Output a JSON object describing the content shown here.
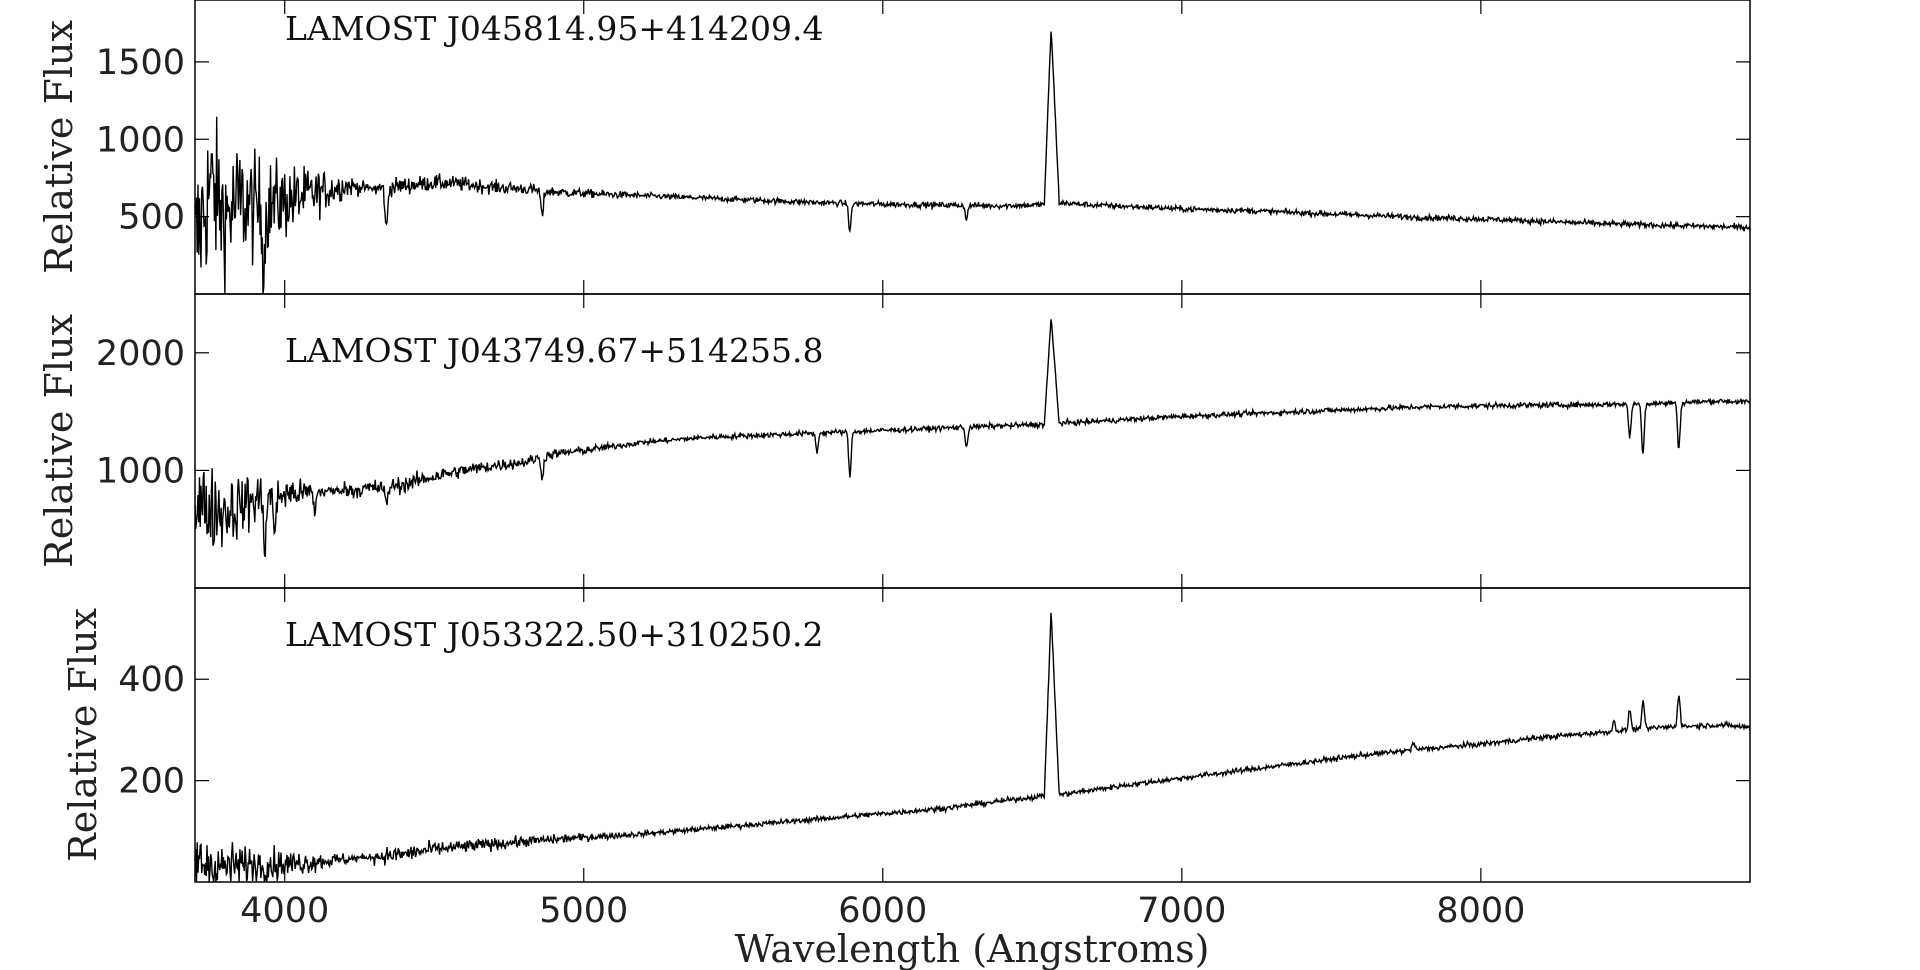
{
  "chart_data": [
    {
      "type": "line",
      "title": "LAMOST J045814.95+414209.4",
      "ylabel": "Relative Flux",
      "xlabel": "",
      "xlim": [
        3700,
        8900
      ],
      "ylim": [
        0,
        1900
      ],
      "yticks": [
        500,
        1000,
        1500
      ],
      "xticks": [
        4000,
        5000,
        6000,
        7000,
        8000
      ],
      "grid": false,
      "series": [
        {
          "values": [
            [
              3700,
              300
            ],
            [
              3750,
              700
            ],
            [
              3800,
              500
            ],
            [
              3850,
              600
            ],
            [
              3900,
              550
            ],
            [
              4000,
              600
            ],
            [
              4100,
              650
            ],
            [
              4200,
              700
            ],
            [
              4300,
              680
            ],
            [
              4400,
              700
            ],
            [
              4500,
              720
            ],
            [
              4600,
              710
            ],
            [
              4700,
              690
            ],
            [
              4800,
              680
            ],
            [
              4900,
              660
            ],
            [
              5000,
              650
            ],
            [
              5200,
              635
            ],
            [
              5400,
              620
            ],
            [
              5600,
              605
            ],
            [
              5800,
              590
            ],
            [
              6000,
              580
            ],
            [
              6200,
              575
            ],
            [
              6400,
              570
            ],
            [
              6500,
              575
            ],
            [
              6540,
              580
            ],
            [
              6563,
              1730
            ],
            [
              6590,
              590
            ],
            [
              6700,
              575
            ],
            [
              6900,
              560
            ],
            [
              7000,
              550
            ],
            [
              7200,
              540
            ],
            [
              7400,
              525
            ],
            [
              7600,
              510
            ],
            [
              7800,
              495
            ],
            [
              8000,
              485
            ],
            [
              8200,
              470
            ],
            [
              8400,
              455
            ],
            [
              8600,
              445
            ],
            [
              8800,
              435
            ],
            [
              8900,
              430
            ]
          ],
          "features": [
            {
              "x": 3930,
              "depth": 0.6
            },
            {
              "x": 4340,
              "depth": 0.4
            },
            {
              "x": 4861,
              "depth": 0.25
            },
            {
              "x": 5890,
              "depth": 0.3
            },
            {
              "x": 6280,
              "depth": 0.15
            }
          ],
          "noise_blue": 520,
          "noise_red": 18,
          "noise_knee": 4300
        }
      ]
    },
    {
      "type": "line",
      "title": "LAMOST J043749.67+514255.8",
      "ylabel": "Relative Flux",
      "xlabel": "",
      "xlim": [
        3700,
        8900
      ],
      "ylim": [
        0,
        2500
      ],
      "yticks": [
        1000,
        2000
      ],
      "xticks": [
        4000,
        5000,
        6000,
        7000,
        8000
      ],
      "grid": false,
      "series": [
        {
          "values": [
            [
              3700,
              700
            ],
            [
              3800,
              650
            ],
            [
              3900,
              750
            ],
            [
              4000,
              800
            ],
            [
              4100,
              820
            ],
            [
              4200,
              830
            ],
            [
              4300,
              850
            ],
            [
              4400,
              880
            ],
            [
              4500,
              950
            ],
            [
              4600,
              1000
            ],
            [
              4700,
              1040
            ],
            [
              4800,
              1070
            ],
            [
              4900,
              1140
            ],
            [
              5000,
              1170
            ],
            [
              5200,
              1240
            ],
            [
              5400,
              1280
            ],
            [
              5600,
              1300
            ],
            [
              5800,
              1320
            ],
            [
              6000,
              1340
            ],
            [
              6200,
              1360
            ],
            [
              6400,
              1380
            ],
            [
              6540,
              1390
            ],
            [
              6563,
              2300
            ],
            [
              6590,
              1400
            ],
            [
              6800,
              1430
            ],
            [
              7000,
              1460
            ],
            [
              7200,
              1480
            ],
            [
              7400,
              1500
            ],
            [
              7600,
              1520
            ],
            [
              7800,
              1540
            ],
            [
              8000,
              1550
            ],
            [
              8200,
              1555
            ],
            [
              8400,
              1560
            ],
            [
              8600,
              1570
            ],
            [
              8800,
              1590
            ],
            [
              8900,
              1580
            ]
          ],
          "features": [
            {
              "x": 3934,
              "depth": 0.5
            },
            {
              "x": 3968,
              "depth": 0.4
            },
            {
              "x": 4101,
              "depth": 0.2
            },
            {
              "x": 4340,
              "depth": 0.2
            },
            {
              "x": 4861,
              "depth": 0.15
            },
            {
              "x": 5780,
              "depth": 0.12
            },
            {
              "x": 5890,
              "depth": 0.28
            },
            {
              "x": 6280,
              "depth": 0.12
            },
            {
              "x": 8498,
              "depth": 0.18
            },
            {
              "x": 8542,
              "depth": 0.27
            },
            {
              "x": 8662,
              "depth": 0.25
            }
          ],
          "noise_blue": 380,
          "noise_red": 22,
          "noise_knee": 4200
        }
      ]
    },
    {
      "type": "line",
      "title": "LAMOST J053322.50+310250.2",
      "ylabel": "Relative Flux",
      "xlabel": "Wavelength (Angstroms)",
      "xlim": [
        3700,
        8900
      ],
      "ylim": [
        0,
        580
      ],
      "yticks": [
        200,
        400
      ],
      "xticks": [
        4000,
        5000,
        6000,
        7000,
        8000
      ],
      "xticklabels": [
        "4000",
        "5000",
        "6000",
        "7000",
        "8000"
      ],
      "grid": false,
      "series": [
        {
          "values": [
            [
              3700,
              40
            ],
            [
              3800,
              30
            ],
            [
              3900,
              35
            ],
            [
              4000,
              35
            ],
            [
              4100,
              40
            ],
            [
              4200,
              45
            ],
            [
              4300,
              50
            ],
            [
              4400,
              55
            ],
            [
              4500,
              65
            ],
            [
              4600,
              70
            ],
            [
              4800,
              80
            ],
            [
              5000,
              88
            ],
            [
              5200,
              95
            ],
            [
              5400,
              105
            ],
            [
              5600,
              115
            ],
            [
              5800,
              125
            ],
            [
              6000,
              135
            ],
            [
              6200,
              145
            ],
            [
              6400,
              160
            ],
            [
              6540,
              170
            ],
            [
              6563,
              535
            ],
            [
              6590,
              172
            ],
            [
              6800,
              190
            ],
            [
              7000,
              205
            ],
            [
              7200,
              220
            ],
            [
              7400,
              235
            ],
            [
              7600,
              250
            ],
            [
              7800,
              262
            ],
            [
              8000,
              272
            ],
            [
              8200,
              285
            ],
            [
              8400,
              295
            ],
            [
              8600,
              305
            ],
            [
              8800,
              310
            ],
            [
              8900,
              305
            ]
          ],
          "emission": [
            {
              "x": 8498,
              "height": 40
            },
            {
              "x": 8542,
              "height": 55
            },
            {
              "x": 8662,
              "height": 65
            },
            {
              "x": 7774,
              "height": 15
            },
            {
              "x": 8446,
              "height": 20
            }
          ],
          "noise_blue": 55,
          "noise_red": 5,
          "noise_knee": 4300
        }
      ]
    }
  ]
}
